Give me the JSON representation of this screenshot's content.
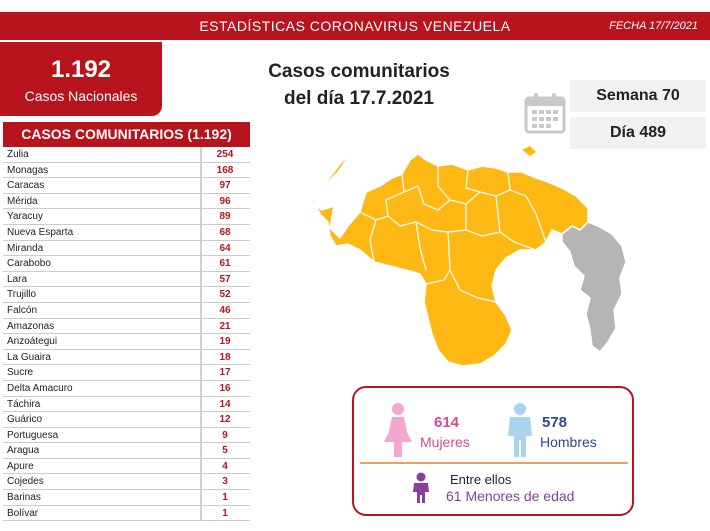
{
  "header": {
    "title": "ESTADÍSTICAS CORONAVIRUS VENEZUELA",
    "date": "FECHA 17/7/2021"
  },
  "national": {
    "value": "1.192",
    "label": "Casos Nacionales"
  },
  "headline": {
    "line1": "Casos comunitarios",
    "line2": "del día 17.7.2021"
  },
  "week": "Semana 70",
  "day": "Día 489",
  "table": {
    "title": "CASOS COMUNITARIOS (1.192)",
    "rows": [
      {
        "state": "Zulia",
        "cases": "254"
      },
      {
        "state": "Monagas",
        "cases": "168"
      },
      {
        "state": "Caracas",
        "cases": "97"
      },
      {
        "state": "Mérida",
        "cases": "96"
      },
      {
        "state": "Yaracuy",
        "cases": "89"
      },
      {
        "state": "Nueva Esparta",
        "cases": "68"
      },
      {
        "state": "Miranda",
        "cases": "64"
      },
      {
        "state": "Carabobo",
        "cases": "61"
      },
      {
        "state": "Lara",
        "cases": "57"
      },
      {
        "state": "Trujillo",
        "cases": "52"
      },
      {
        "state": "Falcón",
        "cases": "46"
      },
      {
        "state": "Amazonas",
        "cases": "21"
      },
      {
        "state": "Anzoátegui",
        "cases": "19"
      },
      {
        "state": "La Guaira",
        "cases": "18"
      },
      {
        "state": "Sucre",
        "cases": "17"
      },
      {
        "state": "Delta Amacuro",
        "cases": "16"
      },
      {
        "state": "Táchira",
        "cases": "14"
      },
      {
        "state": "Guárico",
        "cases": "12"
      },
      {
        "state": "Portuguesa",
        "cases": "9"
      },
      {
        "state": "Aragua",
        "cases": "5"
      },
      {
        "state": "Apure",
        "cases": "4"
      },
      {
        "state": "Cojedes",
        "cases": "3"
      },
      {
        "state": "Barinas",
        "cases": "1"
      },
      {
        "state": "Bolívar",
        "cases": "1"
      }
    ]
  },
  "gender": {
    "female_count": "614",
    "female_label": "Mujeres",
    "male_count": "578",
    "male_label": "Hombres",
    "minors_line1": "Entre ellos",
    "minors_line2": "61 Menores de edad"
  },
  "colors": {
    "brand_red": "#b8141d",
    "map_yellow": "#fdb813",
    "map_gray": "#b5b5b5",
    "female": "#d54a95",
    "male": "#2d4a86",
    "minor": "#8a3fa0"
  },
  "icons": [
    "calendar-icon",
    "female-icon",
    "male-icon",
    "child-icon"
  ]
}
